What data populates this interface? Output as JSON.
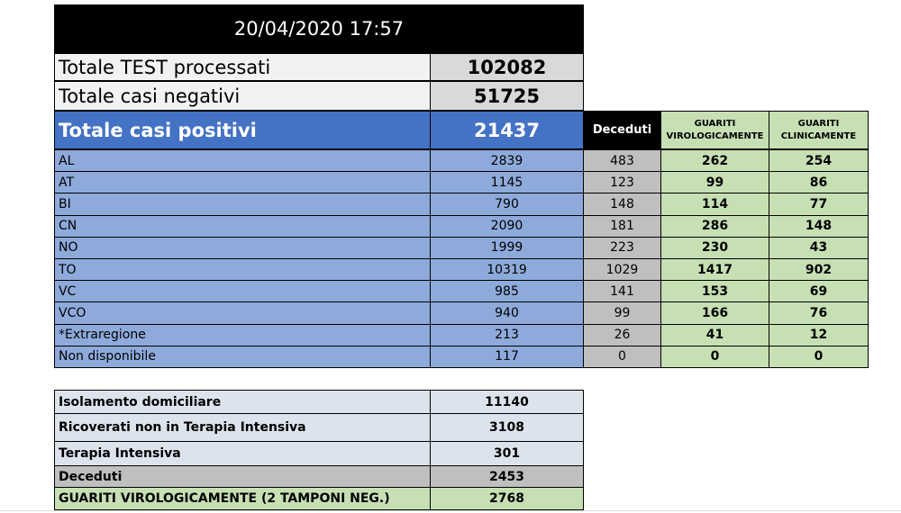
{
  "header": {
    "timestamp": "20/04/2020 17:57"
  },
  "summary": [
    {
      "label": "Totale TEST processati",
      "value": 102082
    },
    {
      "label": "Totale casi negativi",
      "value": 51725
    }
  ],
  "positives": {
    "label": "Totale casi positivi",
    "value": 21437,
    "columns": [
      "Deceduti",
      "GUARITI VIROLOGICAMENTE",
      "GUARITI CLINICAMENTE"
    ]
  },
  "provinces": {
    "rows": [
      [
        "AL",
        2839,
        483,
        262,
        254
      ],
      [
        "AT",
        1145,
        123,
        99,
        86
      ],
      [
        "BI",
        790,
        148,
        114,
        77
      ],
      [
        "CN",
        2090,
        181,
        286,
        148
      ],
      [
        "NO",
        1999,
        223,
        230,
        43
      ],
      [
        "TO",
        10319,
        1029,
        1417,
        902
      ],
      [
        "VC",
        985,
        141,
        153,
        69
      ],
      [
        "VCO",
        940,
        99,
        166,
        76
      ],
      [
        "*Extraregione",
        213,
        26,
        41,
        12
      ],
      [
        "Non disponibile",
        117,
        0,
        0,
        0
      ]
    ]
  },
  "status": [
    {
      "label": "Isolamento domiciliare",
      "value": 11140
    },
    {
      "label": "Ricoverati non in Terapia Intensiva",
      "value": 3108
    },
    {
      "label": "Terapia Intensiva",
      "value": 301
    },
    {
      "label": "Deceduti",
      "value": 2453
    },
    {
      "label": "GUARITI VIROLOGICAMENTE (2 TAMPONI NEG.)",
      "value": 2768
    }
  ]
}
